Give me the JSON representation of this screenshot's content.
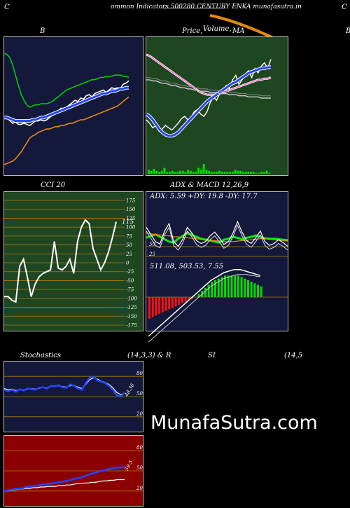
{
  "header": {
    "left_letter": "C",
    "title": "ommon  Indicators 500280  CENTURY ENKA munafasutra.in",
    "right_letter": "C"
  },
  "titles": {
    "bb": "B",
    "price": "Price,",
    "volume": "Volume,",
    "ma": "MA",
    "far_right": "B",
    "cci": "CCI 20",
    "adx_macd": "ADX  & MACD 12,26,9",
    "adx_values": "ADX: 5.59 +DY: 19.8  -DY: 17.7",
    "macd_values": "511.08,  503.53,  7.55",
    "stoch": "Stochastics",
    "stoch_params": "(14,3,3) & R",
    "si": "SI",
    "si_params": "(14,5"
  },
  "watermark": "MunafaSutra.com",
  "colors": {
    "bb_bg": "#14183a",
    "price_bg": "#1e4620",
    "cci_bg": "#1e4620",
    "adx_bg": "#14183a",
    "stoch_bg": "#14183a",
    "rsi_bg": "#8b0000",
    "grid": "#b07a10",
    "ma_orange": "#e08a10",
    "up_green": "#00dd00",
    "down_red": "#ff1010",
    "blue": "#1a3cff"
  },
  "chart_data": [
    {
      "type": "line",
      "id": "bollinger",
      "title": "B",
      "series": [
        {
          "color": "#ffffff",
          "values": [
            37,
            36,
            33,
            31,
            32,
            30,
            30,
            31,
            30,
            29,
            31,
            33,
            33,
            34,
            33,
            34,
            36,
            38,
            40,
            41,
            44,
            44,
            45,
            47,
            49,
            51,
            50,
            53,
            52,
            55,
            56,
            54,
            57,
            58,
            59,
            60,
            58,
            60,
            62,
            61,
            62,
            61,
            65,
            66,
            68
          ]
        },
        {
          "color": "#2244ff",
          "values": [
            36,
            36,
            35,
            34,
            33,
            33,
            33,
            33,
            33,
            33,
            34,
            34,
            35,
            36,
            36,
            37,
            38,
            39,
            40,
            41,
            42,
            43,
            44,
            45,
            46,
            47,
            48,
            49,
            50,
            51,
            52,
            53,
            54,
            55,
            56,
            57,
            57,
            58,
            59,
            59,
            60,
            61,
            61,
            62,
            62
          ]
        },
        {
          "color": "#00cc00",
          "values": [
            92,
            91,
            88,
            82,
            73,
            64,
            56,
            51,
            47,
            45,
            46,
            47,
            47,
            48,
            48,
            48,
            49,
            50,
            52,
            54,
            56,
            58,
            60,
            61,
            62,
            63,
            64,
            65,
            66,
            67,
            68,
            69,
            69,
            70,
            71,
            71,
            72,
            72,
            72,
            73,
            73,
            73,
            72,
            72,
            71
          ]
        },
        {
          "color": "#e08a10",
          "values": [
            -5,
            -4,
            -3,
            -2,
            0,
            3,
            6,
            10,
            14,
            18,
            20,
            21,
            23,
            24,
            25,
            26,
            26,
            27,
            28,
            28,
            29,
            29,
            30,
            31,
            31,
            32,
            33,
            34,
            34,
            35,
            36,
            37,
            38,
            39,
            40,
            41,
            42,
            43,
            44,
            45,
            46,
            48,
            50,
            52,
            54
          ]
        }
      ]
    },
    {
      "type": "line",
      "id": "price_volume_ma",
      "title": "Price, Volume, MA",
      "series": [
        {
          "color": "#ffffff",
          "values": [
            35,
            32,
            28,
            30,
            25,
            27,
            30,
            28,
            26,
            29,
            32,
            36,
            38,
            35,
            37,
            42,
            44,
            40,
            38,
            42,
            50,
            55,
            52,
            58,
            60,
            65,
            62,
            70,
            74,
            66,
            70,
            75,
            78,
            72,
            80,
            76,
            82,
            85,
            80,
            88
          ]
        },
        {
          "color": "#ff66cc",
          "values": [
            92,
            91,
            89,
            87,
            85,
            83,
            81,
            79,
            77,
            75,
            73,
            71,
            69,
            67,
            65,
            63,
            61,
            59,
            58,
            57,
            57,
            57,
            57,
            58,
            59,
            60,
            61,
            62,
            63,
            64,
            65,
            66,
            67,
            68,
            69,
            70,
            70,
            71,
            71,
            72
          ]
        },
        {
          "color": "#2244ff",
          "values": [
            40,
            38,
            35,
            31,
            27,
            24,
            22,
            21,
            21,
            22,
            24,
            27,
            30,
            33,
            36,
            39,
            42,
            45,
            48,
            51,
            53,
            55,
            57,
            59,
            61,
            63,
            65,
            67,
            68,
            70,
            72,
            74,
            76,
            77,
            78,
            79,
            80,
            80,
            81,
            81
          ]
        },
        {
          "color": "#cccccc",
          "values": [
            70,
            70,
            69,
            69,
            68,
            67,
            67,
            66,
            65,
            65,
            64,
            63,
            63,
            62,
            62,
            61,
            61,
            60,
            60,
            60,
            59,
            59,
            59,
            58,
            58,
            58,
            57,
            57,
            57,
            56,
            56,
            56,
            55,
            55,
            55,
            55,
            54,
            54,
            54,
            54
          ]
        }
      ],
      "volume": [
        4,
        3,
        5,
        3,
        2,
        3,
        6,
        2,
        2,
        3,
        2,
        2,
        3,
        3,
        2,
        4,
        3,
        2,
        2,
        6,
        4,
        10,
        4,
        3,
        2,
        2,
        2,
        3,
        2,
        2,
        2,
        2,
        2,
        4,
        3,
        3,
        2,
        2,
        2,
        2,
        2,
        1,
        1,
        2,
        2,
        3,
        1
      ]
    },
    {
      "type": "line",
      "id": "cci",
      "title": "CCI 20",
      "ylim": [
        -175,
        175
      ],
      "yticks": [
        175,
        150,
        125,
        100,
        75,
        50,
        25,
        0,
        -25,
        -50,
        -75,
        -100,
        -125,
        -150,
        -175
      ],
      "last_label": "115",
      "series": [
        {
          "color": "#ffffff",
          "values": [
            -95,
            -95,
            -105,
            -110,
            -10,
            10,
            -40,
            -95,
            -60,
            -40,
            -30,
            -25,
            -20,
            60,
            -15,
            -20,
            -10,
            10,
            -30,
            60,
            100,
            120,
            110,
            40,
            10,
            -20,
            0,
            30,
            70,
            115
          ]
        }
      ]
    },
    {
      "type": "line",
      "id": "adx",
      "title": "ADX & MACD 12,26,9",
      "yticks": [
        50,
        25
      ],
      "series": [
        {
          "color": "#00ee00",
          "values": [
            48,
            52,
            55,
            50,
            45,
            40,
            38,
            46,
            52,
            58,
            54,
            50,
            46,
            44,
            42,
            40,
            38,
            44,
            46,
            50,
            48,
            45,
            48,
            50,
            53,
            50,
            47,
            46,
            46,
            45,
            44,
            43
          ]
        },
        {
          "color": "#e08a10",
          "values": [
            58,
            56,
            55,
            54,
            53,
            52,
            50,
            50,
            49,
            48,
            47,
            46,
            45,
            44,
            43,
            42,
            41,
            40,
            40,
            40,
            41,
            42,
            43,
            44,
            45,
            46,
            46,
            45,
            44,
            43,
            42,
            41
          ]
        },
        {
          "color": "#ffffff",
          "values": [
            70,
            55,
            40,
            35,
            62,
            78,
            40,
            30,
            45,
            70,
            58,
            42,
            36,
            40,
            52,
            60,
            48,
            34,
            40,
            58,
            82,
            60,
            42,
            36,
            48,
            62,
            40,
            32,
            36,
            44,
            38,
            30
          ]
        }
      ]
    },
    {
      "type": "bar",
      "id": "macd",
      "title": "MACD 12,26,9",
      "values_label": "511.08, 503.53, 7.55",
      "histogram": [
        -14,
        -13,
        -12,
        -11,
        -10,
        -9,
        -8,
        -7,
        -6,
        -5,
        -4,
        -3,
        -2,
        -1,
        0,
        2,
        4,
        6,
        8,
        10,
        11,
        12,
        13,
        14,
        14,
        14,
        14,
        14,
        13,
        12,
        11,
        10,
        9,
        8,
        7
      ],
      "macd": [
        -40,
        -37,
        -34,
        -31,
        -28,
        -25,
        -22,
        -19,
        -16,
        -13,
        -10,
        -7,
        -4,
        -1,
        2,
        5,
        8,
        11,
        14,
        17,
        19,
        21,
        23,
        25,
        26,
        27,
        28,
        28,
        28,
        27,
        26,
        25,
        24,
        23,
        22
      ],
      "signal": [
        -46,
        -43,
        -40,
        -37,
        -34,
        -31,
        -28,
        -25,
        -22,
        -19,
        -16,
        -13,
        -10,
        -7,
        -4,
        -1,
        2,
        5,
        8,
        11,
        13,
        15,
        17,
        19,
        20,
        21,
        22,
        23,
        23,
        23,
        23,
        22,
        22,
        21,
        21
      ]
    },
    {
      "type": "line",
      "id": "stochastics",
      "title": "Stochastics (14,3,3)",
      "ylim": [
        0,
        100
      ],
      "yticks": [
        80,
        50,
        20
      ],
      "last_label": "48.36",
      "series": [
        {
          "color": "#2244ff",
          "values": [
            60,
            58,
            60,
            57,
            61,
            59,
            62,
            61,
            60,
            63,
            64,
            62,
            66,
            65,
            67,
            64,
            63,
            68,
            66,
            62,
            60,
            70,
            78,
            80,
            74,
            72,
            70,
            66,
            60,
            52,
            50,
            56
          ]
        },
        {
          "color": "#ffffff",
          "values": [
            62,
            60,
            61,
            59,
            60,
            60,
            61,
            62,
            61,
            62,
            64,
            63,
            65,
            66,
            66,
            65,
            64,
            66,
            67,
            64,
            62,
            68,
            75,
            78,
            76,
            73,
            71,
            68,
            63,
            56,
            53,
            55
          ]
        }
      ]
    },
    {
      "type": "line",
      "id": "rsi",
      "title": "RSI (14,5",
      "ylim": [
        0,
        100
      ],
      "yticks": [
        80,
        50,
        20
      ],
      "last_label": "59.5",
      "series": [
        {
          "color": "#2244ff",
          "values": [
            19,
            21,
            22,
            23,
            24,
            24,
            26,
            27,
            27,
            28,
            29,
            30,
            31,
            31,
            32,
            33,
            34,
            35,
            36,
            38,
            39,
            40,
            42,
            44,
            46,
            47,
            49,
            50,
            52,
            53,
            54,
            55,
            55,
            56
          ]
        },
        {
          "color": "#ffffff",
          "values": [
            19,
            20,
            21,
            22,
            23,
            23,
            24,
            24,
            25,
            25,
            26,
            26,
            27,
            27,
            27,
            28,
            28,
            29,
            29,
            30,
            31,
            31,
            32,
            32,
            33,
            33,
            34,
            35,
            35,
            36,
            36,
            37,
            37,
            37
          ]
        }
      ]
    }
  ]
}
